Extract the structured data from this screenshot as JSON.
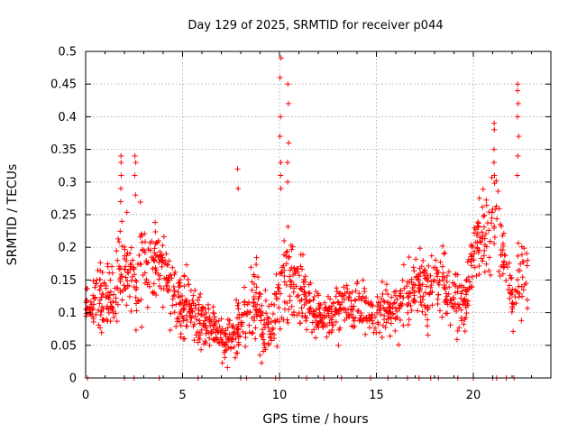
{
  "chart_data": {
    "type": "scatter",
    "title": "Day 129 of 2025, SRMTID for receiver p044",
    "xlabel": "GPS time / hours",
    "ylabel": "SRMTID / TECUs",
    "xlim": [
      0,
      24
    ],
    "ylim": [
      0,
      0.5
    ],
    "x_ticks": [
      0,
      5,
      10,
      15,
      20
    ],
    "x_tick_labels": [
      "0",
      "5",
      "10",
      "15",
      "20"
    ],
    "y_ticks": [
      0,
      0.05,
      0.1,
      0.15,
      0.2,
      0.25,
      0.3,
      0.35,
      0.4,
      0.45,
      0.5
    ],
    "y_tick_labels": [
      "0",
      "0.05",
      "0.1",
      "0.15",
      "0.2",
      "0.25",
      "0.3",
      "0.35",
      "0.4",
      "0.45",
      "0.5"
    ],
    "grid": true,
    "marker": "+",
    "colors": {
      "series": "#ff0000",
      "grid": "#a8a8a8",
      "frame": "#000000"
    },
    "series": [
      {
        "name": "SRMTID",
        "profile_hours": [
          0.0,
          0.3,
          0.6,
          1.0,
          1.4,
          1.8,
          2.2,
          2.6,
          2.9,
          3.2,
          3.6,
          4.0,
          4.4,
          4.8,
          5.2,
          5.6,
          6.0,
          6.4,
          6.8,
          7.2,
          7.6,
          8.0,
          8.4,
          8.8,
          9.2,
          9.6,
          10.0,
          10.4,
          10.8,
          11.2,
          11.6,
          12.0,
          12.4,
          12.8,
          13.2,
          13.6,
          14.0,
          14.4,
          14.8,
          15.2,
          15.6,
          16.0,
          16.4,
          16.8,
          17.2,
          17.6,
          18.0,
          18.4,
          18.8,
          19.2,
          19.6,
          20.0,
          20.4,
          20.8,
          21.2,
          21.6,
          22.0,
          22.4,
          22.8
        ],
        "typical_tecu": [
          0.11,
          0.1,
          0.12,
          0.13,
          0.12,
          0.16,
          0.18,
          0.14,
          0.2,
          0.17,
          0.19,
          0.16,
          0.13,
          0.12,
          0.11,
          0.1,
          0.09,
          0.08,
          0.07,
          0.06,
          0.06,
          0.09,
          0.1,
          0.12,
          0.08,
          0.07,
          0.12,
          0.17,
          0.14,
          0.13,
          0.11,
          0.09,
          0.09,
          0.1,
          0.11,
          0.1,
          0.11,
          0.1,
          0.09,
          0.1,
          0.1,
          0.11,
          0.12,
          0.13,
          0.14,
          0.13,
          0.14,
          0.15,
          0.12,
          0.12,
          0.11,
          0.2,
          0.22,
          0.24,
          0.25,
          0.18,
          0.12,
          0.15,
          0.18
        ],
        "spread_tecu": [
          0.03,
          0.025,
          0.04,
          0.05,
          0.04,
          0.06,
          0.07,
          0.05,
          0.06,
          0.05,
          0.05,
          0.04,
          0.04,
          0.04,
          0.04,
          0.035,
          0.035,
          0.03,
          0.03,
          0.025,
          0.03,
          0.04,
          0.05,
          0.05,
          0.04,
          0.04,
          0.06,
          0.07,
          0.05,
          0.04,
          0.035,
          0.03,
          0.03,
          0.03,
          0.03,
          0.03,
          0.03,
          0.03,
          0.03,
          0.03,
          0.03,
          0.035,
          0.04,
          0.045,
          0.05,
          0.04,
          0.045,
          0.05,
          0.04,
          0.04,
          0.035,
          0.05,
          0.06,
          0.07,
          0.07,
          0.05,
          0.04,
          0.06,
          0.07
        ],
        "spikes": [
          {
            "x": 1.8,
            "values": [
              0.34,
              0.33,
              0.31,
              0.29,
              0.27
            ]
          },
          {
            "x": 2.55,
            "values": [
              0.34,
              0.33,
              0.31,
              0.28
            ]
          },
          {
            "x": 7.85,
            "values": [
              0.32,
              0.29
            ]
          },
          {
            "x": 10.05,
            "values": [
              0.49,
              0.46,
              0.4,
              0.37,
              0.33,
              0.31,
              0.29
            ]
          },
          {
            "x": 10.45,
            "values": [
              0.45,
              0.42,
              0.36,
              0.33,
              0.3
            ]
          },
          {
            "x": 21.1,
            "values": [
              0.39,
              0.38,
              0.35,
              0.33,
              0.31
            ]
          },
          {
            "x": 22.3,
            "values": [
              0.45,
              0.44,
              0.42,
              0.4,
              0.37,
              0.34,
              0.31
            ]
          }
        ],
        "zero_hours": [
          0.1,
          2.0,
          2.5,
          3.8,
          5.8,
          8.0,
          8.3,
          9.8,
          10.0,
          11.4,
          12.3,
          13.2,
          14.7,
          15.6,
          16.6,
          17.2,
          17.8,
          18.2,
          19.2,
          20.0,
          21.0,
          21.2,
          21.7,
          22.1
        ]
      }
    ]
  }
}
